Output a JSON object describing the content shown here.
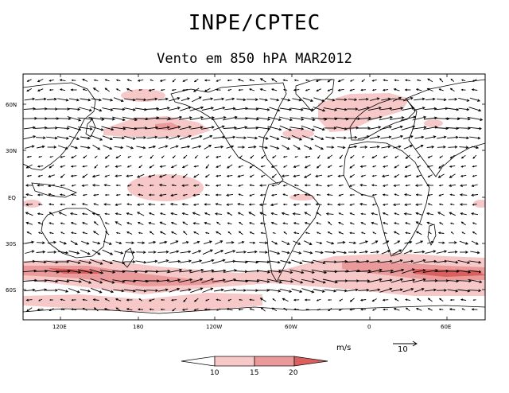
{
  "title": "INPE/CPTEC",
  "subtitle": "Vento em 850 hPA MAR2012",
  "lat_labels": [
    "60N",
    "30N",
    "EQ",
    "30S",
    "60S"
  ],
  "lon_labels": [
    "120E",
    "180",
    "120W",
    "60W",
    "0",
    "60E"
  ],
  "units": "m/s",
  "reference_vector": "10",
  "colorbar": {
    "ticks": [
      "10",
      "15",
      "20"
    ],
    "colors": [
      "#ffffff",
      "#f7c8c8",
      "#ea9a9a",
      "#d9605e"
    ]
  },
  "colors": {
    "shade_light": "#f7c8c8",
    "shade_mid": "#ea9a9a",
    "shade_dark": "#d9605e"
  }
}
